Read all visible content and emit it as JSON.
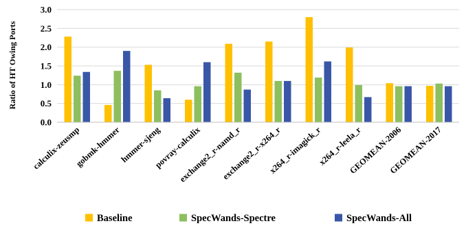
{
  "chart_data": {
    "type": "bar",
    "ylabel": "Ratio of HT Owing Ports",
    "xlabel": "",
    "ylim": [
      0,
      3.0
    ],
    "yticks": [
      "0.0",
      "0.5",
      "1.0",
      "1.5",
      "2.0",
      "2.5",
      "3.0"
    ],
    "grid": true,
    "legend_position": "bottom",
    "categories": [
      "calculix-zeusmp",
      "gobmk-hmmer",
      "hmmer-sjeng",
      "povray-calculix",
      "exchange2_r-namd_r",
      "exchange2_r-x264_r",
      "x264_r-imagick_r",
      "x264_r-leela_r",
      "GEOMEAN-2006",
      "GEOMEAN-2017"
    ],
    "series": [
      {
        "name": "Baseline",
        "color": "#FFC000",
        "values": [
          2.28,
          0.46,
          1.53,
          0.6,
          2.09,
          2.15,
          2.8,
          1.99,
          1.04,
          0.97
        ]
      },
      {
        "name": "SpecWands-Spectre",
        "color": "#8DBF5E",
        "values": [
          1.24,
          1.37,
          0.85,
          0.96,
          1.32,
          1.1,
          1.19,
          0.99,
          0.96,
          1.03
        ]
      },
      {
        "name": "SpecWands-All",
        "color": "#3A57A7",
        "values": [
          1.34,
          1.9,
          0.64,
          1.6,
          0.87,
          1.1,
          1.62,
          0.67,
          0.96,
          0.96
        ]
      }
    ]
  }
}
